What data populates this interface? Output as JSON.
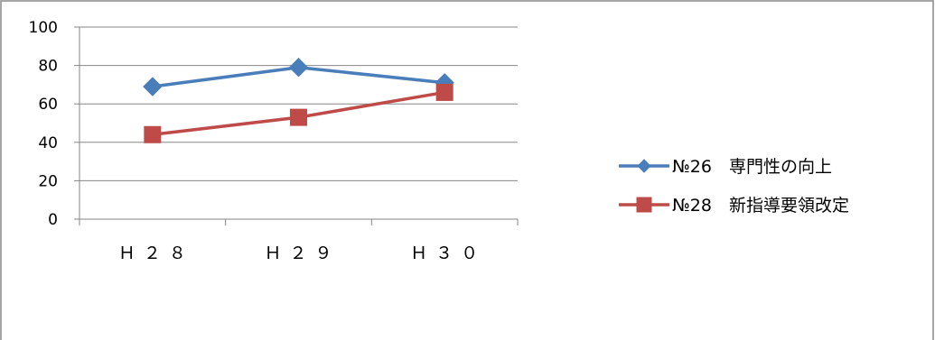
{
  "chart_data": {
    "type": "line",
    "title": "",
    "xlabel": "",
    "ylabel": "",
    "categories": [
      "Ｈ２８",
      "Ｈ２９",
      "Ｈ３０"
    ],
    "ylim": [
      0,
      100
    ],
    "yticks": [
      0,
      20,
      40,
      60,
      80,
      100
    ],
    "grid": true,
    "legend_position": "right",
    "series": [
      {
        "name": "№26　専門性の向上",
        "values": [
          69,
          79,
          71
        ],
        "color": "#4a7ebb",
        "marker": "diamond"
      },
      {
        "name": "№28　新指導要領改定",
        "values": [
          44,
          53,
          66
        ],
        "color": "#be4b48",
        "marker": "square"
      }
    ]
  }
}
